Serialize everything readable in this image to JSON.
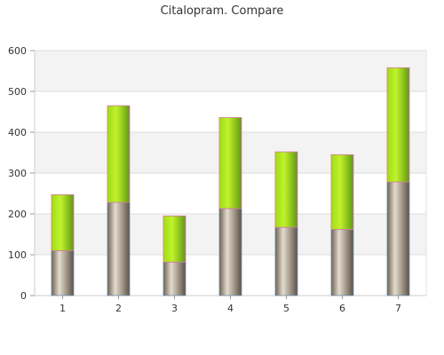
{
  "chart_data": {
    "type": "bar",
    "stacked": true,
    "title": "Citalopram. Compare",
    "xlabel": "",
    "ylabel": "",
    "categories": [
      "1",
      "2",
      "3",
      "4",
      "5",
      "6",
      "7"
    ],
    "ylim": [
      0,
      600
    ],
    "yticks": [
      0,
      100,
      200,
      300,
      400,
      500,
      600
    ],
    "grid": true,
    "series": [
      {
        "values": [
          110,
          228,
          82,
          213,
          167,
          162,
          278
        ],
        "color": "#8f8373"
      },
      {
        "values": [
          137,
          237,
          113,
          223,
          185,
          183,
          280
        ],
        "color": "#9fd21a"
      }
    ]
  }
}
